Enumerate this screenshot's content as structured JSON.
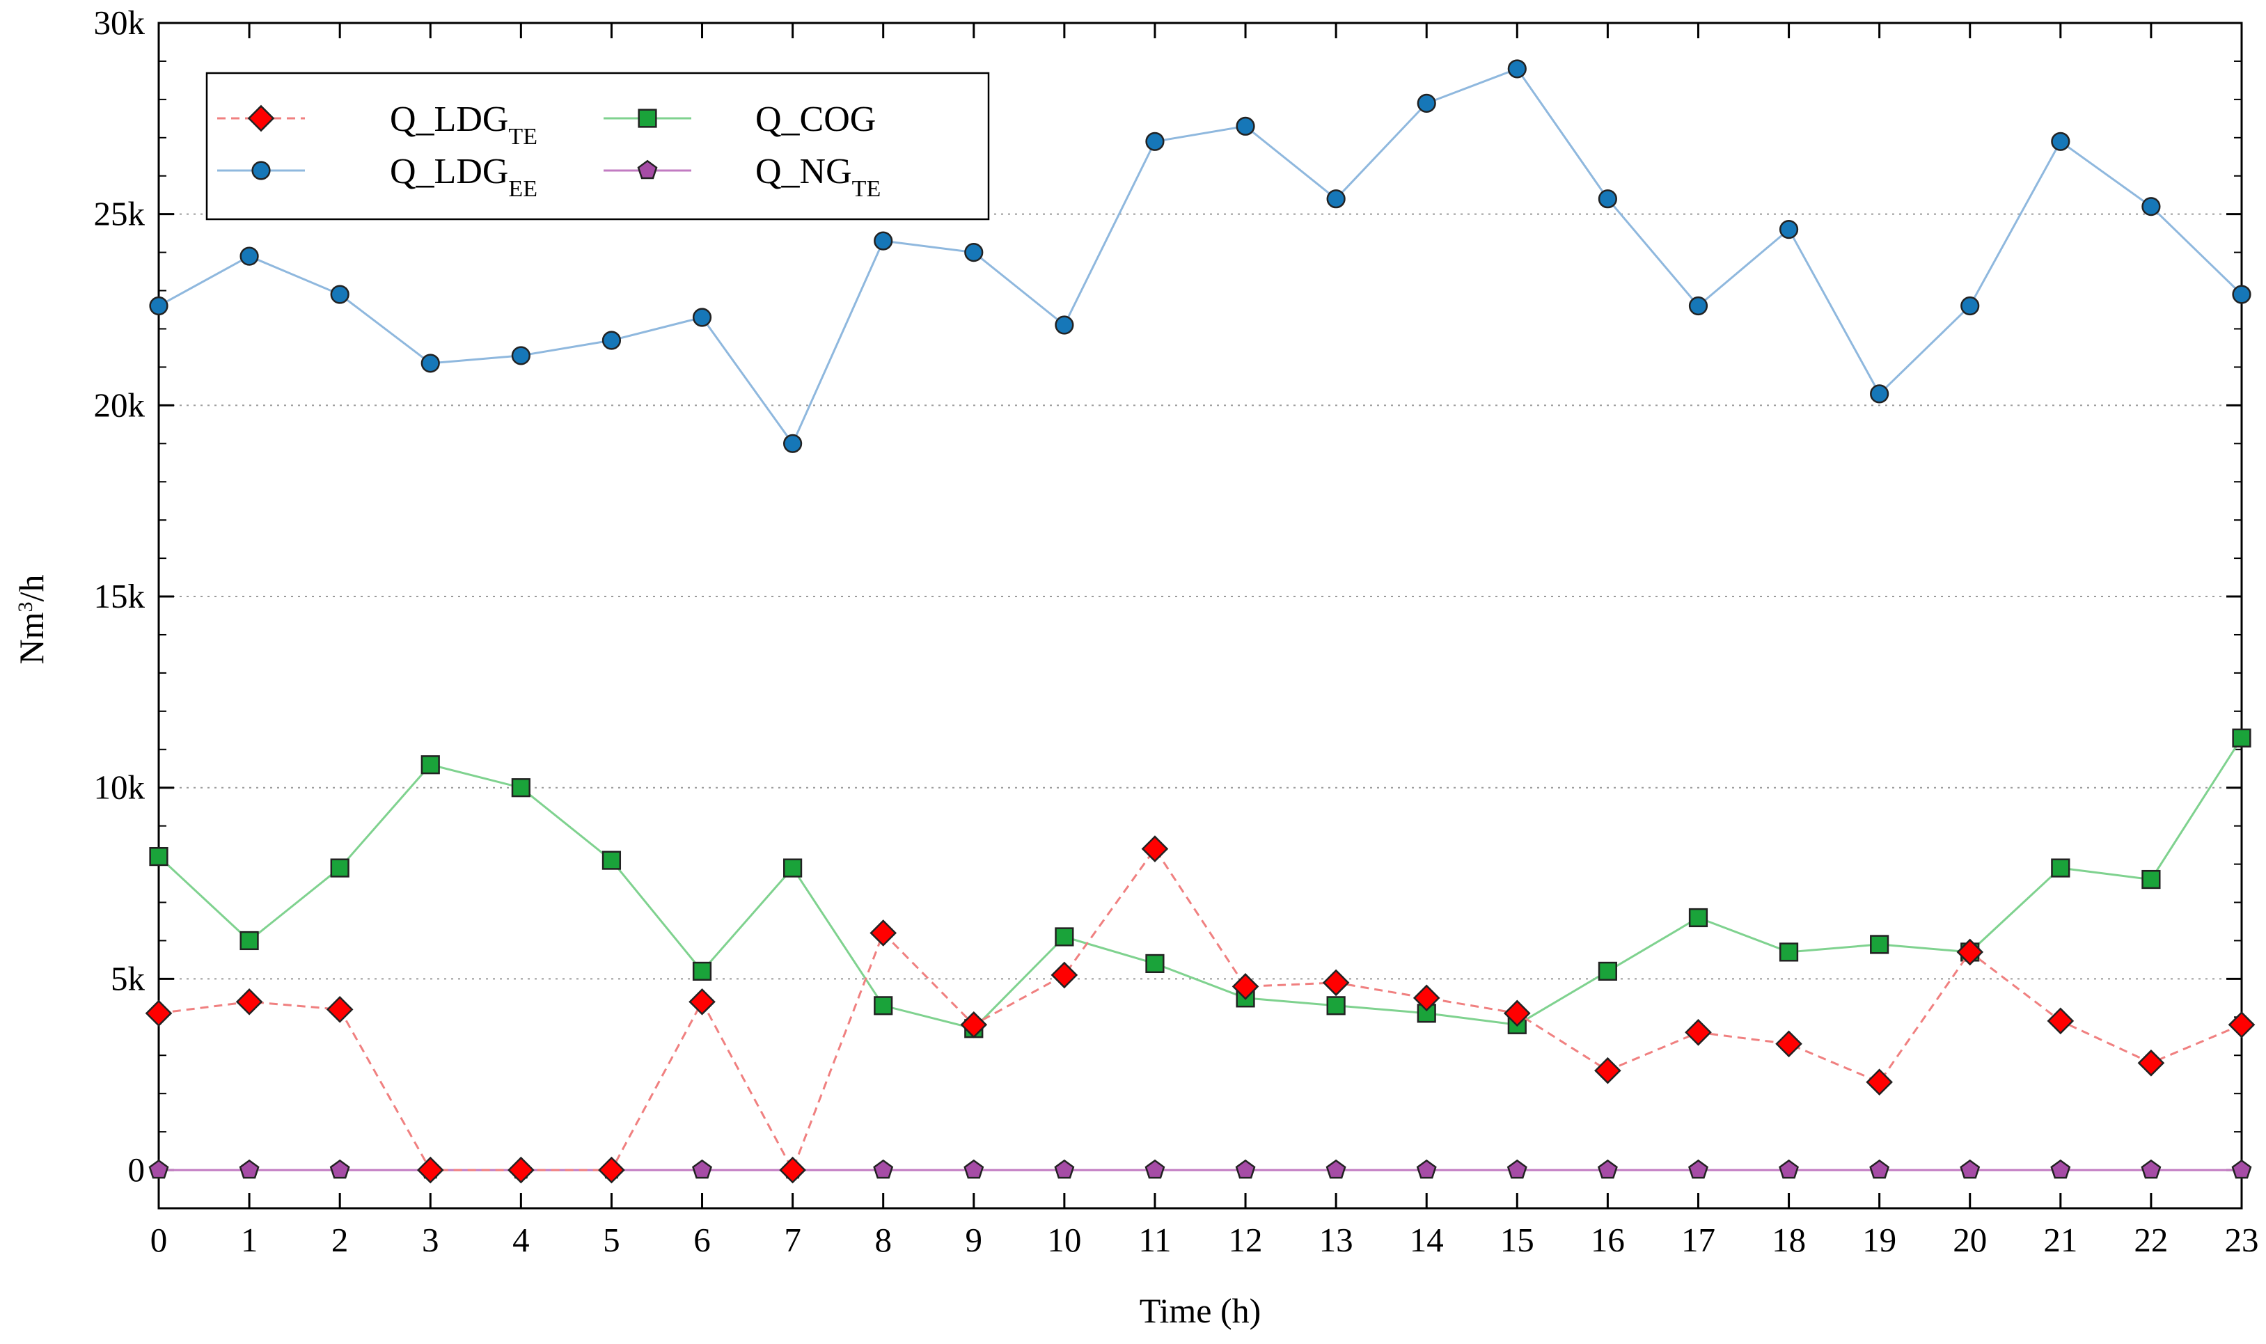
{
  "chart_data": {
    "type": "line",
    "title": "",
    "xlabel": "Time (h)",
    "ylabel": {
      "base": "Nm",
      "sup": "3",
      "tail": "/h"
    },
    "x": [
      0,
      1,
      2,
      3,
      4,
      5,
      6,
      7,
      8,
      9,
      10,
      11,
      12,
      13,
      14,
      15,
      16,
      17,
      18,
      19,
      20,
      21,
      22,
      23
    ],
    "xlim": [
      0,
      23
    ],
    "ylim": [
      -1000,
      30000
    ],
    "yticks": [
      0,
      5000,
      10000,
      15000,
      20000,
      25000,
      30000
    ],
    "ytick_labels": [
      "0",
      "5k",
      "10k",
      "15k",
      "20k",
      "25k",
      "30k"
    ],
    "xtick_labels": [
      "0",
      "1",
      "2",
      "3",
      "4",
      "5",
      "6",
      "7",
      "8",
      "9",
      "10",
      "11",
      "12",
      "13",
      "14",
      "15",
      "16",
      "17",
      "18",
      "19",
      "20",
      "21",
      "22",
      "23"
    ],
    "grid": "horizontal-dotted",
    "legend_position": "top-left",
    "series": [
      {
        "key": "ldg_te",
        "name": "Q_LDG",
        "subscript": "TE",
        "color": "#ff0000",
        "line_color": "#f08080",
        "line_style": "dashed",
        "marker": "diamond",
        "values": [
          4100,
          4400,
          4200,
          0,
          0,
          0,
          4400,
          0,
          6200,
          3800,
          5100,
          8400,
          4800,
          4900,
          4500,
          4100,
          2600,
          3600,
          3300,
          2300,
          5700,
          3900,
          2800,
          3800
        ]
      },
      {
        "key": "ldg_ee",
        "name": "Q_LDG",
        "subscript": "EE",
        "color": "#1677b8",
        "line_color": "#8fb8de",
        "line_style": "solid",
        "marker": "circle",
        "values": [
          22600,
          23900,
          22900,
          21100,
          21300,
          21700,
          22300,
          19000,
          24300,
          24000,
          22100,
          26900,
          27300,
          25400,
          27900,
          28800,
          25400,
          22600,
          24600,
          20300,
          22600,
          26900,
          25200,
          22900
        ]
      },
      {
        "key": "cog",
        "name": "Q_COG",
        "subscript": "",
        "color": "#1aa33a",
        "line_color": "#7fd28f",
        "line_style": "solid",
        "marker": "square",
        "values": [
          8200,
          6000,
          7900,
          10600,
          10000,
          8100,
          5200,
          7900,
          4300,
          3700,
          6100,
          5400,
          4500,
          4300,
          4100,
          3800,
          5200,
          6600,
          5700,
          5900,
          5700,
          7900,
          7600,
          11300
        ]
      },
      {
        "key": "ng_te",
        "name": "Q_NG",
        "subscript": "TE",
        "color": "#a64ca6",
        "line_color": "#c27bc2",
        "line_style": "solid",
        "marker": "pentagon",
        "values": [
          0,
          0,
          0,
          0,
          0,
          0,
          0,
          0,
          0,
          0,
          0,
          0,
          0,
          0,
          0,
          0,
          0,
          0,
          0,
          0,
          0,
          0,
          0,
          0
        ]
      }
    ]
  }
}
